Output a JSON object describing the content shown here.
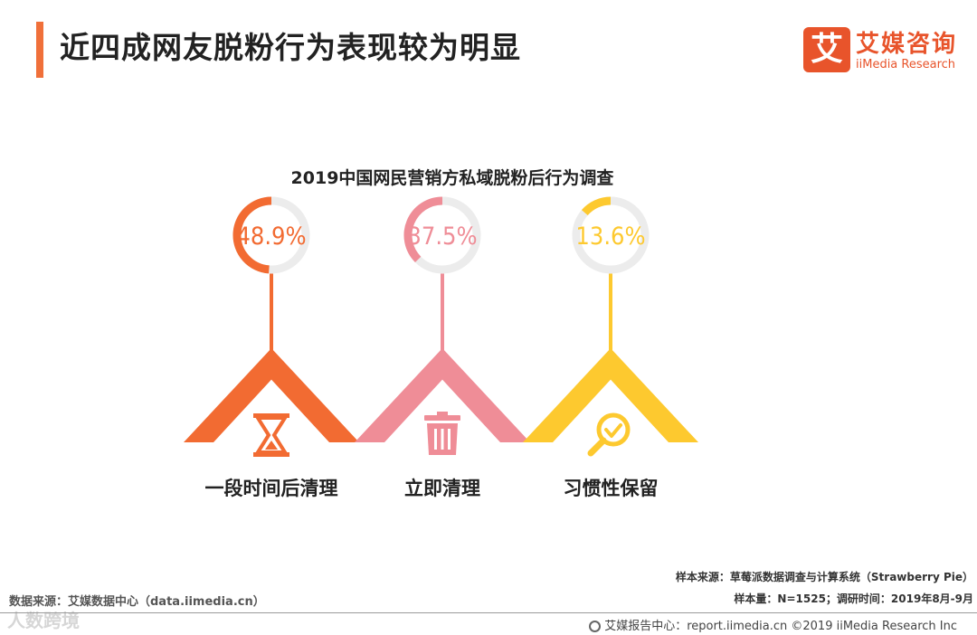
{
  "page_title": "近四成网友脱粉行为表现较为明显",
  "logo": {
    "box_char": "艾",
    "cn": "艾媒咨询",
    "en": "iiMedia Research"
  },
  "colors": {
    "orange": "#f26b32",
    "pink": "#ef8d97",
    "yellow": "#fdc92f",
    "track": "#ececec"
  },
  "chart_data": {
    "type": "bar",
    "title": "2019中国网民营销方私域脱粉后行为调查",
    "categories": [
      "一段时间后清理",
      "立即清理",
      "习惯性保留"
    ],
    "values": [
      48.9,
      37.5,
      13.6
    ],
    "value_labels": [
      "48.9%",
      "37.5%",
      "13.6%"
    ],
    "unit": "%",
    "ylim": [
      0,
      100
    ],
    "icons": [
      "hourglass-icon",
      "trash-icon",
      "magnifier-check-icon"
    ]
  },
  "source_left": "数据来源：艾媒数据中心（data.iimedia.cn）",
  "watermark": "人数跨境",
  "notes": {
    "sample_source": "样本来源：草莓派数据调查与计算系统（Strawberry Pie）",
    "sample_size": "样本量：N=1525；调研时间：2019年8月-9月"
  },
  "footer": "艾媒报告中心：report.iimedia.cn ©2019  iiMedia Research Inc"
}
